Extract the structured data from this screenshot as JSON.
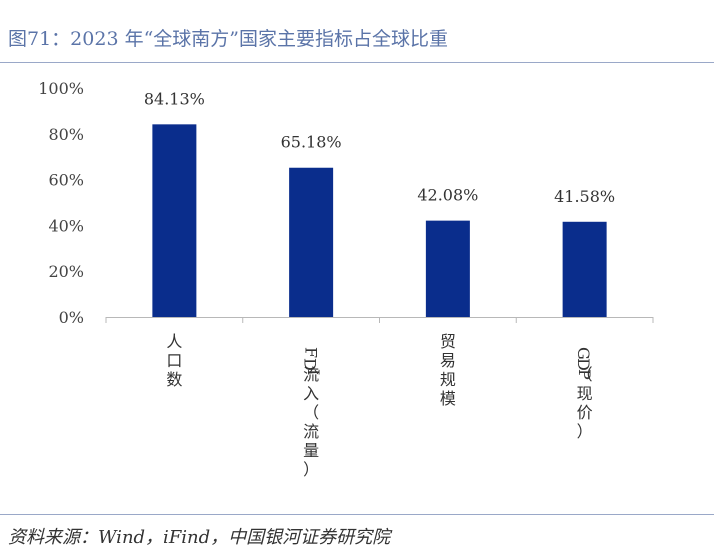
{
  "header": {
    "title": "图71：2023 年“全球南方”国家主要指标占全球比重"
  },
  "footer": {
    "source": "资料来源：Wind，iFind，中国银河证券研究院"
  },
  "colors": {
    "bar": "#0a2d8c",
    "title": "#5b74a8",
    "rule": "#9aa8c8",
    "axis": "#b8b8b8"
  },
  "chart_data": {
    "type": "bar",
    "title": "",
    "xlabel": "",
    "ylabel": "",
    "categories": [
      "人口数",
      "FDI流入（流量）",
      "贸易规模",
      "GDP（现价）"
    ],
    "values": [
      84.13,
      65.18,
      42.08,
      41.58
    ],
    "data_labels": [
      "84.13%",
      "65.18%",
      "42.08%",
      "41.58%"
    ],
    "ylim": [
      0,
      100
    ],
    "yticks": [
      0,
      20,
      40,
      60,
      80,
      100
    ],
    "ytick_labels": [
      "0%",
      "20%",
      "40%",
      "60%",
      "80%",
      "100%"
    ],
    "grid": false,
    "legend": "none"
  }
}
